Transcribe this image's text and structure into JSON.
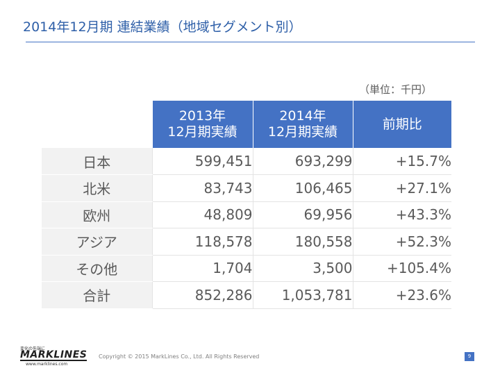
{
  "title": "2014年12月期 連結業績（地域セグメント別）",
  "unit_note": "（単位：千円）",
  "table": {
    "headers": [
      "2013年\n12月期実績",
      "2014年\n12月期実績",
      "前期比"
    ],
    "header_lines": [
      [
        "2013年",
        "12月期実績"
      ],
      [
        "2014年",
        "12月期実績"
      ],
      [
        "前期比"
      ]
    ],
    "rows": [
      {
        "label": "日本",
        "y2013": "599,451",
        "y2014": "693,299",
        "change": "+15.7%"
      },
      {
        "label": "北米",
        "y2013": "83,743",
        "y2014": "106,465",
        "change": "+27.1%"
      },
      {
        "label": "欧州",
        "y2013": "48,809",
        "y2014": "69,956",
        "change": "+43.3%"
      },
      {
        "label": "アジア",
        "y2013": "118,578",
        "y2014": "180,558",
        "change": "+52.3%"
      },
      {
        "label": "その他",
        "y2013": "1,704",
        "y2014": "3,500",
        "change": "+105.4%"
      },
      {
        "label": "合計",
        "y2013": "852,286",
        "y2014": "1,053,781",
        "change": "+23.6%"
      }
    ]
  },
  "footer": {
    "logo_tagline": "変化の先端に",
    "logo_text": "MARKLINES",
    "logo_url": "www.marklines.com",
    "copyright": "Copyright © 2015 MarkLines Co., Ltd. All Rights Reserved",
    "page_number": "9"
  },
  "colors": {
    "accent": "#4472c4",
    "title": "#2e5fa8",
    "label_bg": "#f2f2f2",
    "text": "#595959"
  }
}
